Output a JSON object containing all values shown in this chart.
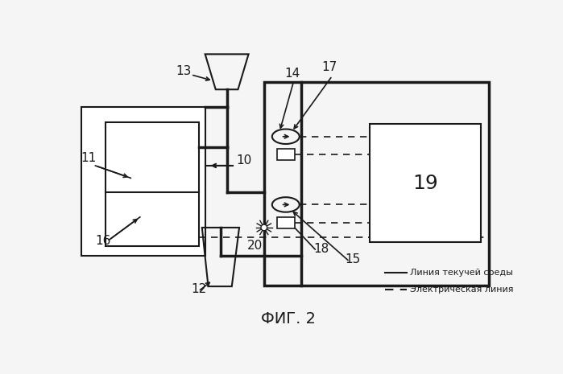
{
  "title": "ФИГ. 2",
  "legend_line1": "Линия текучей среды",
  "legend_line2": "Электрическая линия",
  "bg_color": "#f5f5f5",
  "line_color": "#1a1a1a"
}
